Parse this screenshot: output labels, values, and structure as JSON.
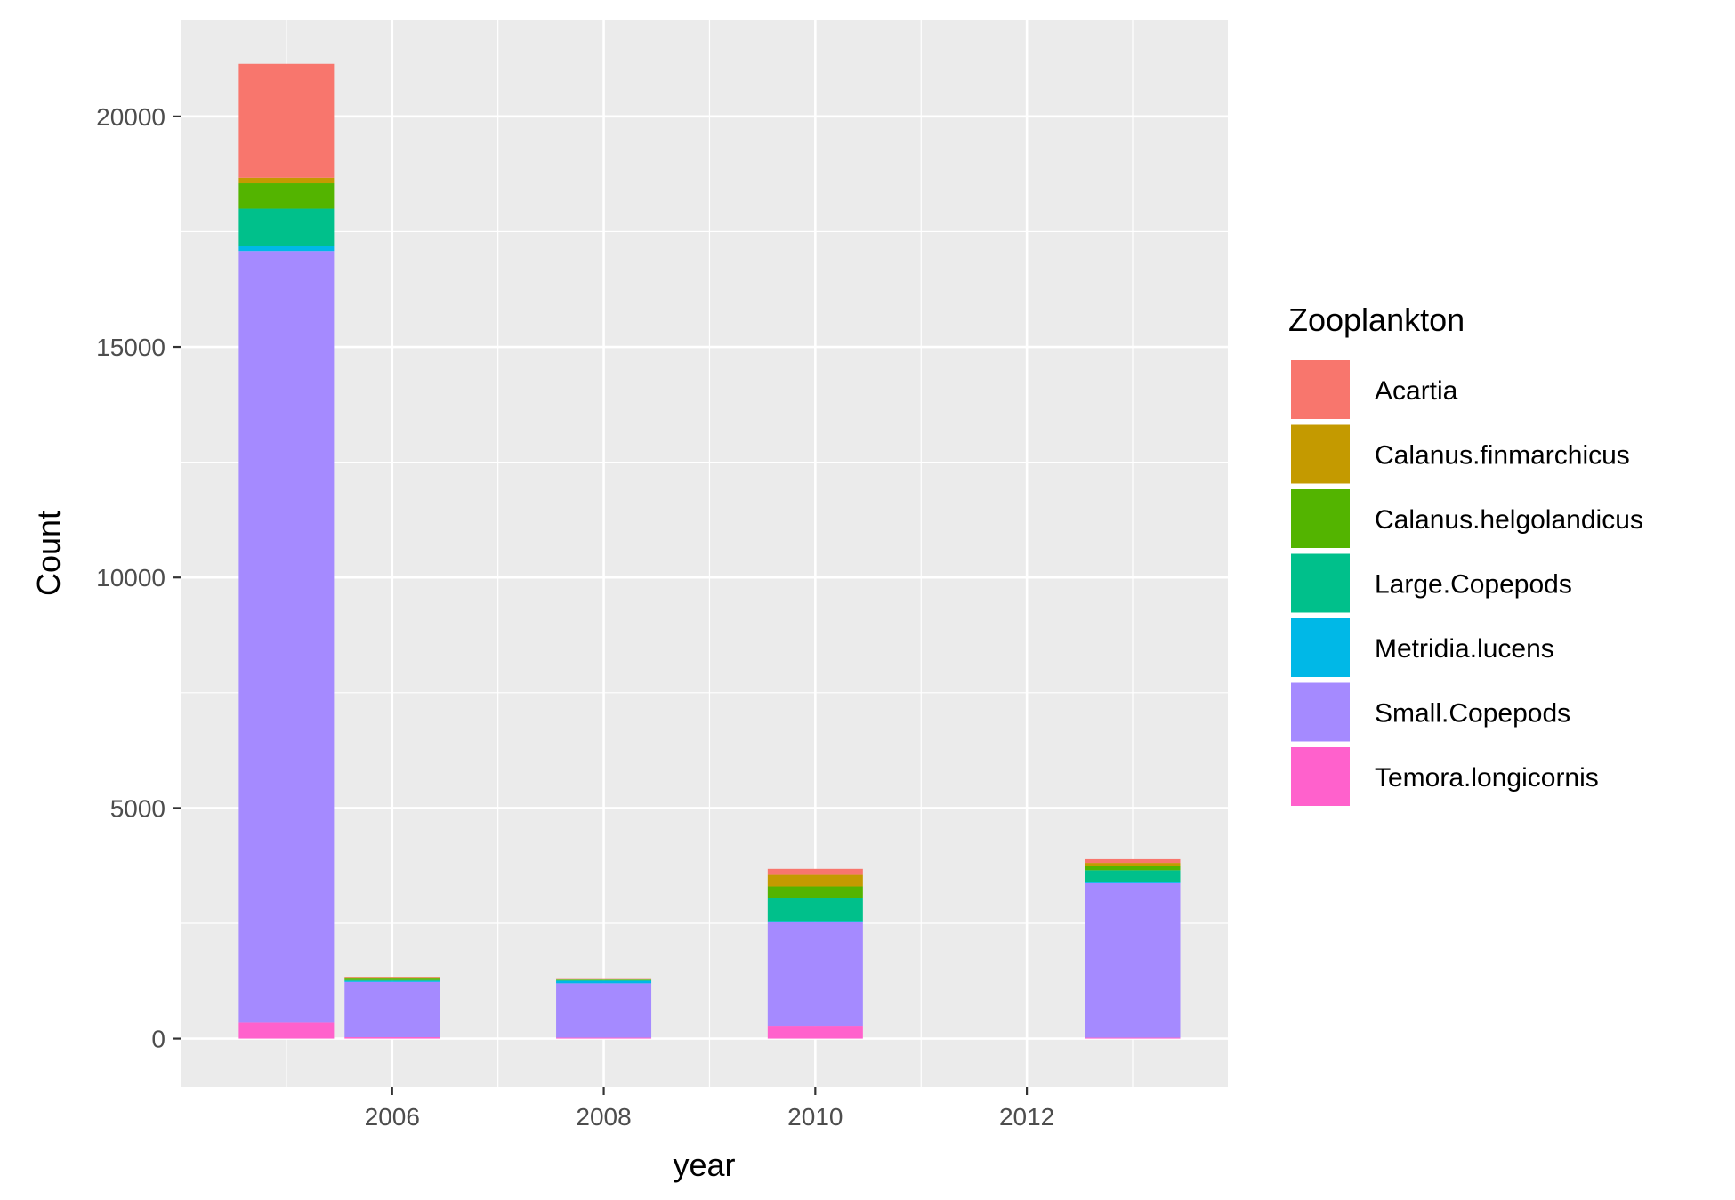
{
  "chart_data": {
    "type": "bar",
    "stacked": true,
    "xlabel": "year",
    "ylabel": "Count",
    "xlim": [
      2004,
      2013.9
    ],
    "ylim": [
      -1050,
      22100
    ],
    "x_ticks": [
      2006,
      2008,
      2010,
      2012
    ],
    "x_tick_labels": [
      "2006",
      "2008",
      "2010",
      "2012"
    ],
    "x_minor_ticks": [
      2005,
      2007,
      2009,
      2011,
      2013
    ],
    "y_ticks": [
      0,
      5000,
      10000,
      15000,
      20000
    ],
    "y_tick_labels": [
      "0",
      "5000",
      "10000",
      "15000",
      "20000"
    ],
    "bar_width_years": 0.9,
    "grid": true,
    "legend": {
      "title": "Zooplankton",
      "placement": "right"
    },
    "x": [
      2005,
      2006,
      2008,
      2010,
      2013
    ],
    "series": [
      {
        "name": "Temora.longicornis",
        "color": "#FF61CC",
        "values": [
          350,
          30,
          20,
          280,
          20
        ]
      },
      {
        "name": "Small.Copepods",
        "color": "#A58AFF",
        "values": [
          16730,
          1200,
          1180,
          2250,
          3350
        ]
      },
      {
        "name": "Metridia.lucens",
        "color": "#00B8E7",
        "values": [
          120,
          20,
          50,
          20,
          30
        ]
      },
      {
        "name": "Large.Copepods",
        "color": "#00C08B",
        "values": [
          800,
          20,
          20,
          500,
          250
        ]
      },
      {
        "name": "Calanus.helgolandicus",
        "color": "#53B400",
        "values": [
          550,
          50,
          10,
          250,
          100
        ]
      },
      {
        "name": "Calanus.finmarchicus",
        "color": "#C49A00",
        "values": [
          120,
          10,
          10,
          250,
          60
        ]
      },
      {
        "name": "Acartia",
        "color": "#F8766D",
        "values": [
          2470,
          10,
          20,
          130,
          80
        ]
      }
    ]
  }
}
